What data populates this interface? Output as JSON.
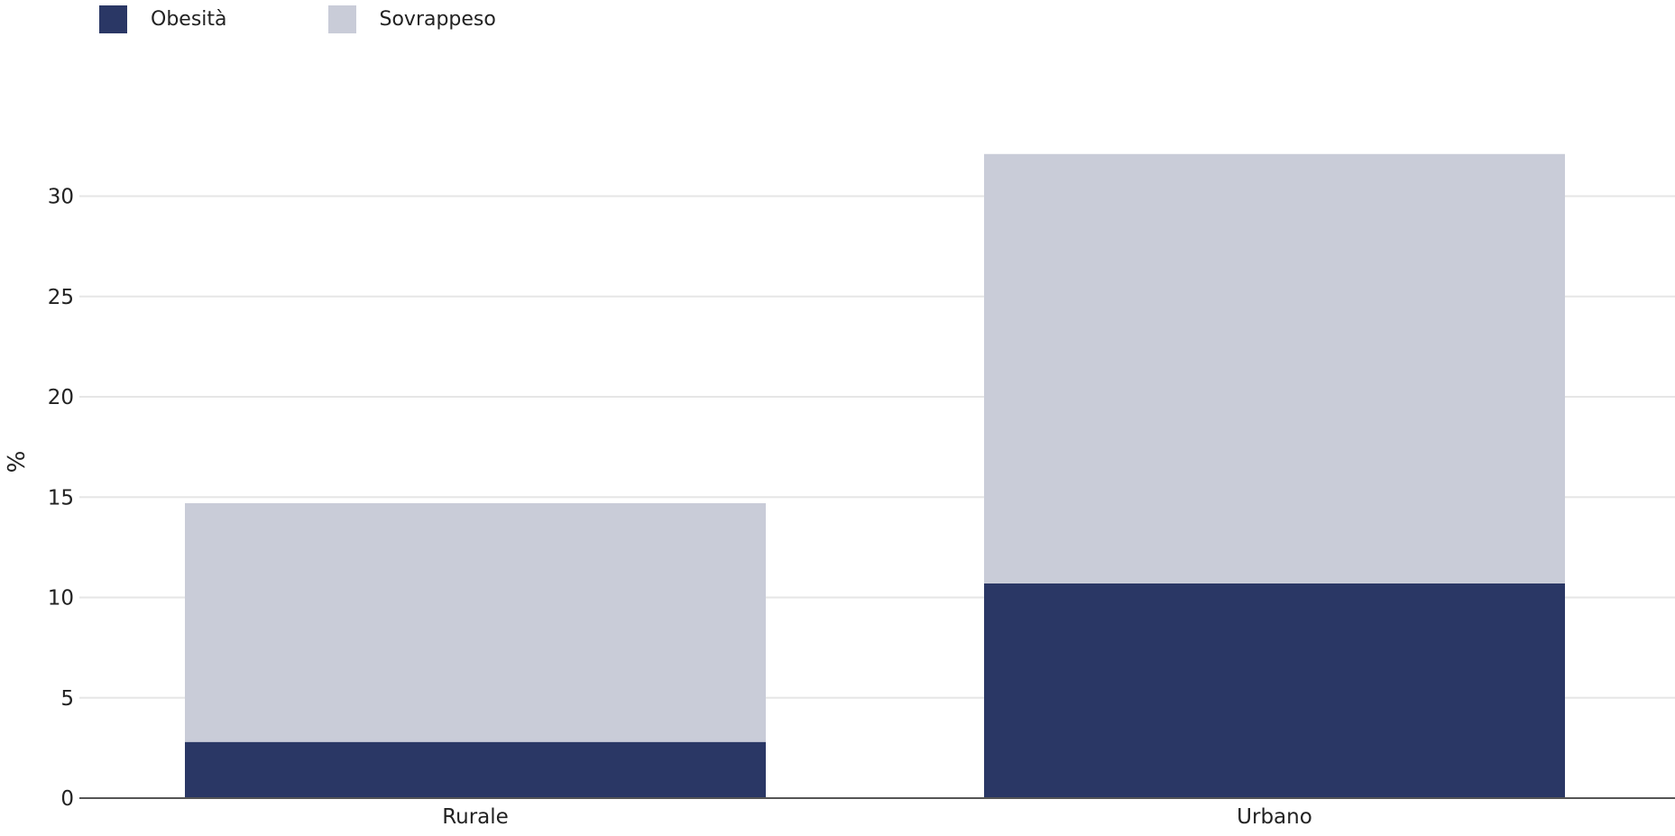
{
  "chart_data": {
    "type": "bar",
    "stacked": true,
    "categories": [
      "Rurale",
      "Urbano"
    ],
    "series": [
      {
        "name": "Obesità",
        "color": "#2a3765",
        "values": [
          2.8,
          10.7
        ]
      },
      {
        "name": "Sovrappeso",
        "color": "#c9ccd8",
        "values": [
          11.9,
          21.4
        ]
      }
    ],
    "title": "",
    "xlabel": "",
    "ylabel": "%",
    "ylim": [
      0,
      32
    ],
    "yticks": [
      0,
      5,
      10,
      15,
      20,
      25,
      30
    ],
    "grid": true,
    "legend_position": "top-left"
  }
}
